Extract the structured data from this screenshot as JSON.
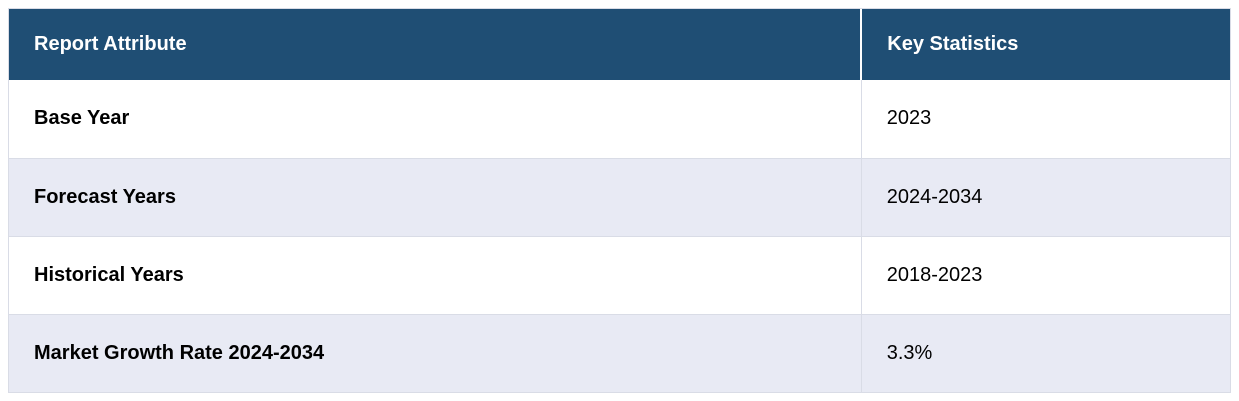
{
  "table": {
    "columns": [
      {
        "label": "Report Attribute"
      },
      {
        "label": "Key Statistics"
      }
    ],
    "rows": [
      {
        "attribute": "Base Year",
        "value": "2023"
      },
      {
        "attribute": "Forecast Years",
        "value": "2024-2034"
      },
      {
        "attribute": "Historical Years",
        "value": "2018-2023"
      },
      {
        "attribute": "Market Growth Rate 2024-2034",
        "value": "3.3%"
      }
    ],
    "colors": {
      "header_bg": "#1f4e74",
      "header_text": "#ffffff",
      "row_bg": "#ffffff",
      "row_alt_bg": "#e8eaf4",
      "border": "#d9dce6",
      "text": "#000000"
    }
  }
}
